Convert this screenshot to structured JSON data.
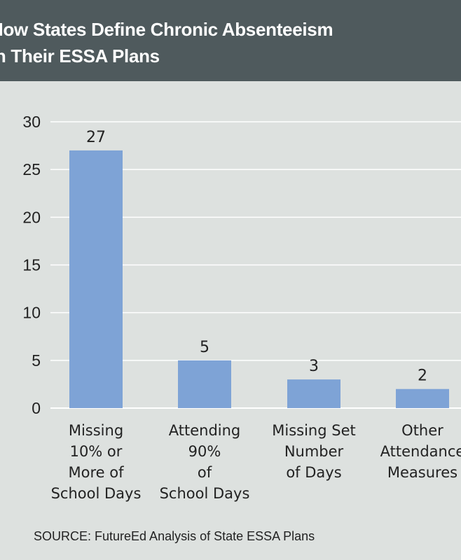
{
  "header": {
    "title_lines": [
      "How States Define Chronic Absenteeism",
      "in Their ESSA Plans"
    ]
  },
  "source": "SOURCE: FutureEd Analysis of State ESSA Plans",
  "colors": {
    "header_bg": "#4f5a5d",
    "background": "#dde1df",
    "bar": "#7ea3d6",
    "grid": "#ffffff"
  },
  "chart_data": {
    "type": "bar",
    "categories": [
      [
        "Missing",
        "10% or",
        "More of",
        "School Days"
      ],
      [
        "Attending",
        "90%",
        "of",
        "School Days"
      ],
      [
        "Missing Set",
        "Number",
        "of Days"
      ],
      [
        "Other",
        "Attendance",
        "Measures"
      ]
    ],
    "values": [
      27,
      5,
      3,
      2
    ],
    "data_labels": [
      "27",
      "5",
      "3",
      "2"
    ],
    "yticks": [
      0,
      5,
      10,
      15,
      20,
      25,
      30
    ],
    "ylim": [
      0,
      30
    ],
    "grid": true
  }
}
